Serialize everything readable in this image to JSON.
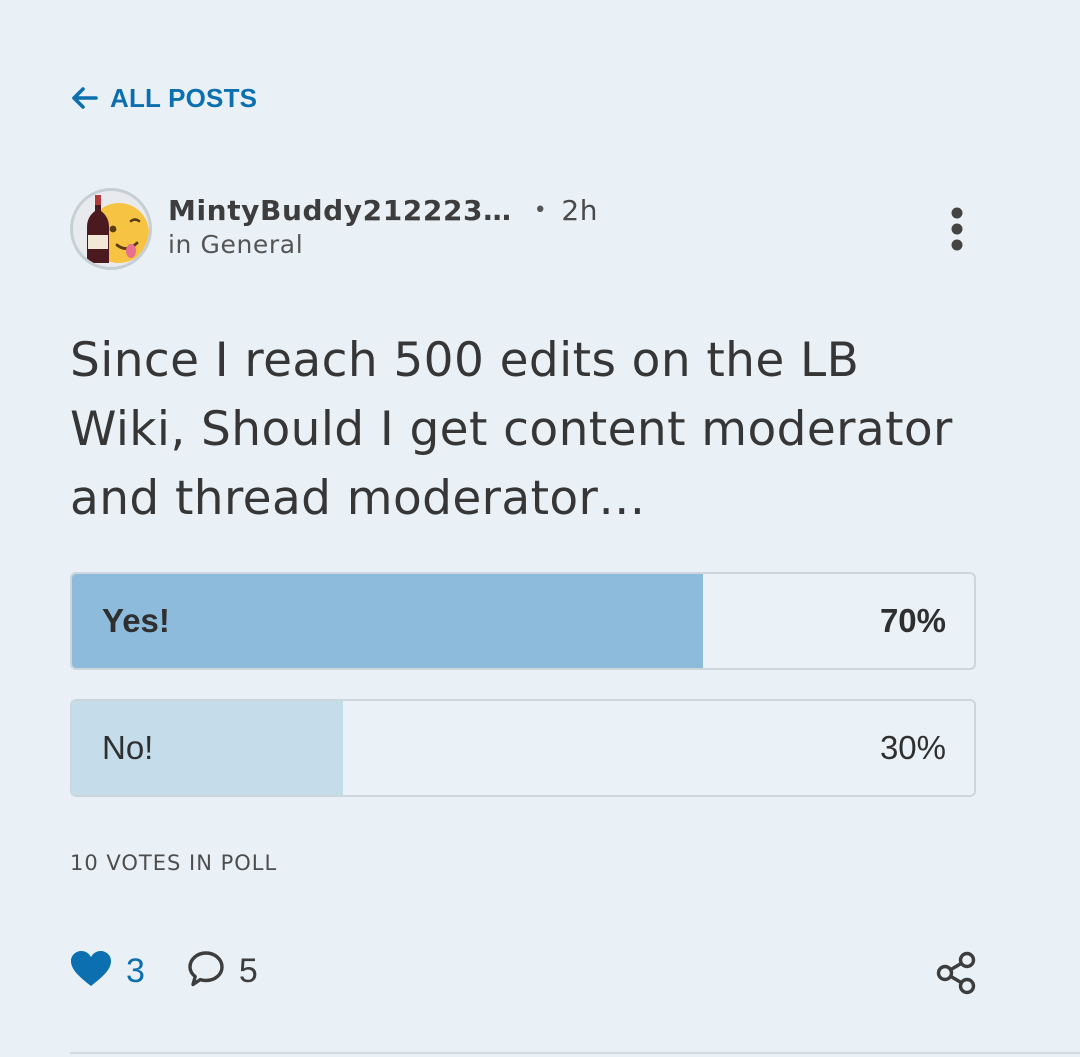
{
  "nav": {
    "back_label": "ALL POSTS",
    "back_icon": "arrow-left-icon"
  },
  "post": {
    "author": "MintyBuddy212223…",
    "separator": "•",
    "time": "2h",
    "category": "in General",
    "title": "Since I reach 500 edits on the LB Wiki, Should I get content moderator and thread moderator…",
    "avatar_icon": "wine-bottle-emoji-avatar",
    "menu_icon": "kebab-menu-icon"
  },
  "poll": {
    "options": [
      {
        "label": "Yes!",
        "percent_label": "70%",
        "fraction": 0.7,
        "fill_color": "#8dbbdc",
        "leading": true
      },
      {
        "label": "No!",
        "percent_label": "30%",
        "fraction": 0.3,
        "fill_color": "#c5dcea",
        "leading": false
      }
    ],
    "votes_label": "10 VOTES IN POLL"
  },
  "actions": {
    "likes": "3",
    "comments": "5",
    "like_icon": "heart-icon",
    "comment_icon": "speech-bubble-icon",
    "share_icon": "share-icon"
  },
  "colors": {
    "accent": "#0b6fb0",
    "background": "#e9f1f7",
    "text": "#363636"
  }
}
